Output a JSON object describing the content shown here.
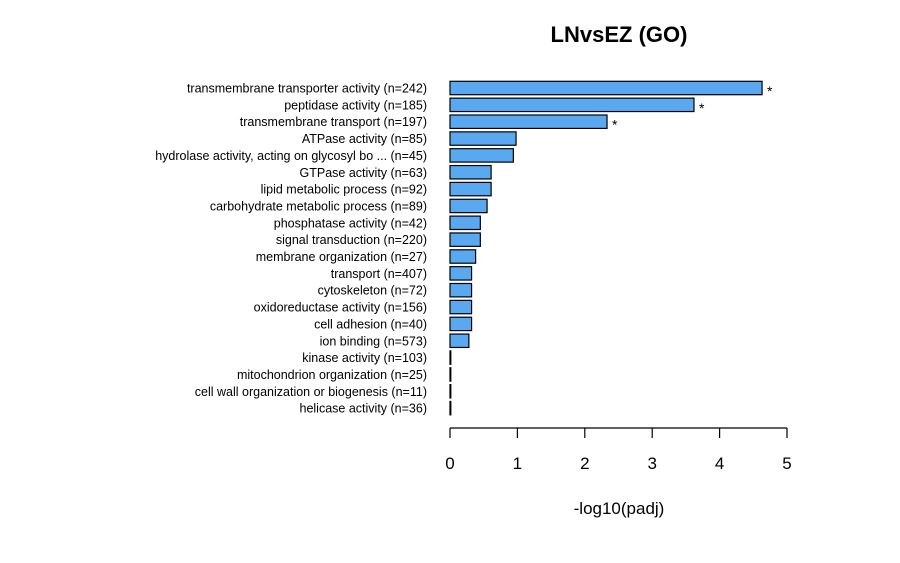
{
  "chart_data": {
    "type": "bar",
    "orientation": "horizontal",
    "title": "LNvsEZ (GO)",
    "xlabel": "-log10(padj)",
    "ylabel": "",
    "xlim": [
      0,
      5
    ],
    "xticks": [
      "0",
      "1",
      "2",
      "3",
      "4",
      "5"
    ],
    "bar_color": "#5aa9f0",
    "bar_edge_color": "#000000",
    "grid": false,
    "categories": [
      "transmembrane transporter activity (n=242)",
      "peptidase activity (n=185)",
      "transmembrane transport (n=197)",
      "ATPase activity (n=85)",
      "hydrolase activity, acting on glycosyl bo ... (n=45)",
      "GTPase activity (n=63)",
      "lipid metabolic process (n=92)",
      "carbohydrate metabolic process (n=89)",
      "phosphatase activity (n=42)",
      "signal transduction (n=220)",
      "membrane organization (n=27)",
      "transport (n=407)",
      "cytoskeleton (n=72)",
      "oxidoreductase activity (n=156)",
      "cell adhesion (n=40)",
      "ion binding (n=573)",
      "kinase activity (n=103)",
      "mitochondrion organization (n=25)",
      "cell wall organization or biogenesis (n=11)",
      "helicase activity (n=36)"
    ],
    "values": [
      4.63,
      3.62,
      2.33,
      0.98,
      0.94,
      0.61,
      0.61,
      0.55,
      0.45,
      0.45,
      0.38,
      0.32,
      0.32,
      0.32,
      0.32,
      0.28,
      0.01,
      0.01,
      0.01,
      0.01
    ],
    "annotations": [
      "*",
      "*",
      "*",
      "",
      "",
      "",
      "",
      "",
      "",
      "",
      "",
      "",
      "",
      "",
      "",
      "",
      "",
      "",
      "",
      ""
    ]
  }
}
